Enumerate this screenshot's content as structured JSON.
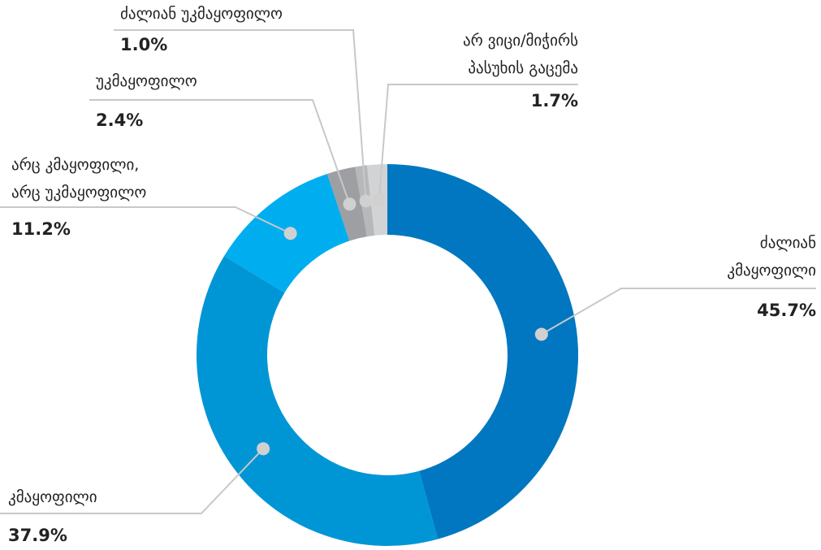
{
  "chart_data": {
    "type": "donut",
    "categories": [
      "ძალიან\nკმაყოფილი",
      "კმაყოფილი",
      "არც კმაყოფილი,\nარც უკმაყოფილო",
      "უკმაყოფილო",
      "ძალიან უკმაყოფილო",
      "არ ვიცი/მიჭირს\nპასუხის გაცემა"
    ],
    "values": [
      45.7,
      37.9,
      11.2,
      2.4,
      1.0,
      1.7
    ],
    "value_labels": [
      "45.7%",
      "37.9%",
      "11.2%",
      "2.4%",
      "1.0%",
      "1.7%"
    ],
    "colors": [
      "#0077c0",
      "#0096d6",
      "#00aeef",
      "#9d9fa2",
      "#b6b8ba",
      "#d1d3d4"
    ]
  }
}
